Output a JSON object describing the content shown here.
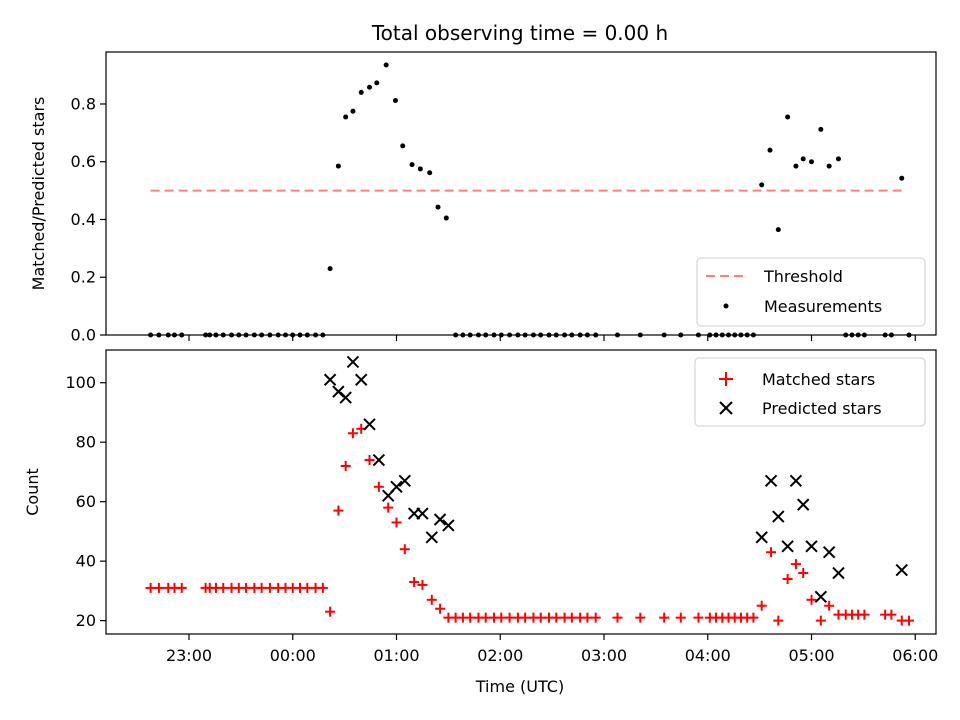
{
  "chart_data": [
    {
      "type": "scatter",
      "title": "Total observing time = 0.00 h",
      "ylabel": "Matched/Predicted stars",
      "xlabel": "",
      "x_unit": "hours after 00:00 UTC",
      "xlim": [
        -1.8,
        6.2
      ],
      "ylim": [
        0,
        0.98
      ],
      "yticks": [
        0.0,
        0.2,
        0.4,
        0.6,
        0.8
      ],
      "ytick_labels": [
        "0.0",
        "0.2",
        "0.4",
        "0.6",
        "0.8"
      ],
      "threshold": {
        "name": "Threshold",
        "value": 0.5,
        "x_range": [
          -1.37,
          5.87
        ],
        "color": "#ff7f7f"
      },
      "legend_position": "lower-right",
      "series": [
        {
          "name": "Measurements",
          "color": "#000000",
          "points": [
            [
              -1.37,
              0.0
            ],
            [
              -1.29,
              0.0
            ],
            [
              -1.2,
              0.0
            ],
            [
              -1.14,
              0.0
            ],
            [
              -1.07,
              0.0
            ],
            [
              -0.84,
              0.0
            ],
            [
              -0.8,
              0.0
            ],
            [
              -0.74,
              0.0
            ],
            [
              -0.67,
              0.0
            ],
            [
              -0.59,
              0.0
            ],
            [
              -0.52,
              0.0
            ],
            [
              -0.45,
              0.0
            ],
            [
              -0.37,
              0.0
            ],
            [
              -0.3,
              0.0
            ],
            [
              -0.22,
              0.0
            ],
            [
              -0.14,
              0.0
            ],
            [
              -0.07,
              0.0
            ],
            [
              0.0,
              0.0
            ],
            [
              0.07,
              0.0
            ],
            [
              0.14,
              0.0
            ],
            [
              0.22,
              0.0
            ],
            [
              0.29,
              0.0
            ],
            [
              0.36,
              0.23
            ],
            [
              0.44,
              0.585
            ],
            [
              0.51,
              0.755
            ],
            [
              0.58,
              0.775
            ],
            [
              0.66,
              0.84
            ],
            [
              0.74,
              0.858
            ],
            [
              0.81,
              0.873
            ],
            [
              0.9,
              0.935
            ],
            [
              0.99,
              0.812
            ],
            [
              1.06,
              0.655
            ],
            [
              1.15,
              0.59
            ],
            [
              1.23,
              0.575
            ],
            [
              1.32,
              0.562
            ],
            [
              1.4,
              0.443
            ],
            [
              1.48,
              0.405
            ],
            [
              1.57,
              0.0
            ],
            [
              1.64,
              0.0
            ],
            [
              1.71,
              0.0
            ],
            [
              1.79,
              0.0
            ],
            [
              1.86,
              0.0
            ],
            [
              1.94,
              0.0
            ],
            [
              2.01,
              0.0
            ],
            [
              2.09,
              0.0
            ],
            [
              2.17,
              0.0
            ],
            [
              2.24,
              0.0
            ],
            [
              2.32,
              0.0
            ],
            [
              2.39,
              0.0
            ],
            [
              2.47,
              0.0
            ],
            [
              2.54,
              0.0
            ],
            [
              2.62,
              0.0
            ],
            [
              2.69,
              0.0
            ],
            [
              2.77,
              0.0
            ],
            [
              2.84,
              0.0
            ],
            [
              2.92,
              0.0
            ],
            [
              3.13,
              0.0
            ],
            [
              3.35,
              0.0
            ],
            [
              3.58,
              0.0
            ],
            [
              3.74,
              0.0
            ],
            [
              3.91,
              0.0
            ],
            [
              4.02,
              0.0
            ],
            [
              4.08,
              0.0
            ],
            [
              4.14,
              0.0
            ],
            [
              4.2,
              0.0
            ],
            [
              4.26,
              0.0
            ],
            [
              4.32,
              0.0
            ],
            [
              4.38,
              0.0
            ],
            [
              4.44,
              0.0
            ],
            [
              4.52,
              0.52
            ],
            [
              4.6,
              0.64
            ],
            [
              4.68,
              0.365
            ],
            [
              4.77,
              0.755
            ],
            [
              4.85,
              0.585
            ],
            [
              4.92,
              0.61
            ],
            [
              5.0,
              0.6
            ],
            [
              5.09,
              0.712
            ],
            [
              5.17,
              0.585
            ],
            [
              5.26,
              0.61
            ],
            [
              5.33,
              0.0
            ],
            [
              5.39,
              0.0
            ],
            [
              5.45,
              0.0
            ],
            [
              5.51,
              0.0
            ],
            [
              5.71,
              0.0
            ],
            [
              5.77,
              0.0
            ],
            [
              5.87,
              0.543
            ],
            [
              5.94,
              0.0
            ]
          ]
        }
      ]
    },
    {
      "type": "scatter",
      "title": "",
      "xlabel": "Time (UTC)",
      "ylabel": "Count",
      "x_unit": "hours after 00:00 UTC",
      "xlim": [
        -1.8,
        6.2
      ],
      "ylim": [
        15.5,
        111
      ],
      "yticks": [
        20,
        40,
        60,
        80,
        100
      ],
      "ytick_labels": [
        "20",
        "40",
        "60",
        "80",
        "100"
      ],
      "xticks": [
        -1,
        0,
        1,
        2,
        3,
        4,
        5,
        6
      ],
      "xtick_labels": [
        "23:00",
        "00:00",
        "01:00",
        "02:00",
        "03:00",
        "04:00",
        "05:00",
        "06:00"
      ],
      "legend_position": "upper-right",
      "series": [
        {
          "name": "Matched stars",
          "marker": "plus",
          "color": "#ff0000",
          "points": [
            [
              -1.37,
              31
            ],
            [
              -1.29,
              31
            ],
            [
              -1.2,
              31
            ],
            [
              -1.14,
              31
            ],
            [
              -1.07,
              31
            ],
            [
              -0.84,
              31
            ],
            [
              -0.8,
              31
            ],
            [
              -0.74,
              31
            ],
            [
              -0.67,
              31
            ],
            [
              -0.59,
              31
            ],
            [
              -0.52,
              31
            ],
            [
              -0.45,
              31
            ],
            [
              -0.37,
              31
            ],
            [
              -0.3,
              31
            ],
            [
              -0.22,
              31
            ],
            [
              -0.14,
              31
            ],
            [
              -0.07,
              31
            ],
            [
              0.0,
              31
            ],
            [
              0.07,
              31
            ],
            [
              0.14,
              31
            ],
            [
              0.22,
              31
            ],
            [
              0.29,
              31
            ],
            [
              0.36,
              23
            ],
            [
              0.44,
              57
            ],
            [
              0.51,
              72
            ],
            [
              0.58,
              83
            ],
            [
              0.66,
              84.5
            ],
            [
              0.74,
              74
            ],
            [
              0.83,
              65
            ],
            [
              0.92,
              58
            ],
            [
              1.0,
              53
            ],
            [
              1.08,
              44
            ],
            [
              1.17,
              33
            ],
            [
              1.25,
              32
            ],
            [
              1.34,
              27
            ],
            [
              1.42,
              24
            ],
            [
              1.5,
              21
            ],
            [
              1.57,
              21
            ],
            [
              1.64,
              21
            ],
            [
              1.71,
              21
            ],
            [
              1.79,
              21
            ],
            [
              1.86,
              21
            ],
            [
              1.94,
              21
            ],
            [
              2.01,
              21
            ],
            [
              2.09,
              21
            ],
            [
              2.17,
              21
            ],
            [
              2.24,
              21
            ],
            [
              2.32,
              21
            ],
            [
              2.39,
              21
            ],
            [
              2.47,
              21
            ],
            [
              2.54,
              21
            ],
            [
              2.62,
              21
            ],
            [
              2.69,
              21
            ],
            [
              2.77,
              21
            ],
            [
              2.84,
              21
            ],
            [
              2.92,
              21
            ],
            [
              3.13,
              21
            ],
            [
              3.35,
              21
            ],
            [
              3.58,
              21
            ],
            [
              3.74,
              21
            ],
            [
              3.91,
              21
            ],
            [
              4.02,
              21
            ],
            [
              4.08,
              21
            ],
            [
              4.14,
              21
            ],
            [
              4.2,
              21
            ],
            [
              4.26,
              21
            ],
            [
              4.32,
              21
            ],
            [
              4.38,
              21
            ],
            [
              4.44,
              21
            ],
            [
              4.52,
              25
            ],
            [
              4.61,
              43
            ],
            [
              4.68,
              20
            ],
            [
              4.77,
              34
            ],
            [
              4.85,
              39
            ],
            [
              4.92,
              36
            ],
            [
              5.0,
              27
            ],
            [
              5.09,
              20
            ],
            [
              5.17,
              25
            ],
            [
              5.26,
              22
            ],
            [
              5.33,
              22
            ],
            [
              5.39,
              22
            ],
            [
              5.45,
              22
            ],
            [
              5.51,
              22
            ],
            [
              5.71,
              22
            ],
            [
              5.77,
              22
            ],
            [
              5.87,
              20
            ],
            [
              5.94,
              20
            ]
          ]
        },
        {
          "name": "Predicted stars",
          "marker": "x",
          "color": "#000000",
          "points": [
            [
              0.36,
              101
            ],
            [
              0.44,
              97
            ],
            [
              0.51,
              95
            ],
            [
              0.58,
              107
            ],
            [
              0.66,
              101
            ],
            [
              0.74,
              86
            ],
            [
              0.83,
              74
            ],
            [
              0.92,
              62
            ],
            [
              1.0,
              65
            ],
            [
              1.08,
              67
            ],
            [
              1.17,
              56
            ],
            [
              1.25,
              56
            ],
            [
              1.34,
              48
            ],
            [
              1.42,
              54
            ],
            [
              1.5,
              52
            ],
            [
              4.52,
              48
            ],
            [
              4.61,
              67
            ],
            [
              4.68,
              55
            ],
            [
              4.77,
              45
            ],
            [
              4.85,
              67
            ],
            [
              4.92,
              59
            ],
            [
              5.0,
              45
            ],
            [
              5.09,
              28
            ],
            [
              5.17,
              43
            ],
            [
              5.26,
              36
            ],
            [
              5.87,
              37
            ]
          ]
        }
      ]
    }
  ]
}
